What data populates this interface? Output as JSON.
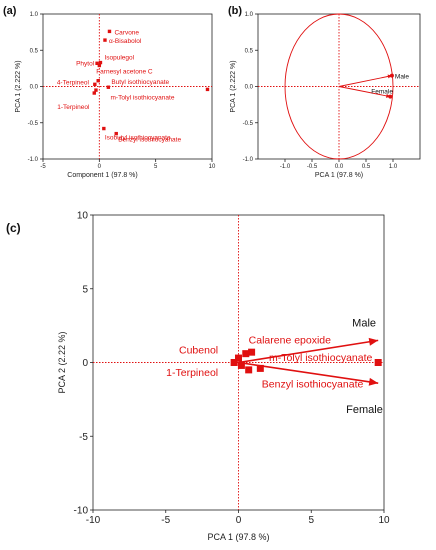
{
  "chart_data": [
    {
      "panel": "(a)",
      "type": "scatter",
      "xlabel": "Component 1  (97.8 %)",
      "ylabel": "PCA 1   (2.222 %)",
      "xlim": [
        -5,
        10
      ],
      "ylim": [
        -1.0,
        1.0
      ],
      "xticks": [
        "-5",
        "0",
        "5",
        "10"
      ],
      "yticks": [
        "-1.0",
        "-0.5",
        "0.0",
        "0.5",
        "1.0"
      ],
      "points": [
        {
          "label": "Carvone",
          "x": 0.9,
          "y": 0.76
        },
        {
          "label": "α-Bisabolol",
          "x": 0.5,
          "y": 0.64
        },
        {
          "label": "Isopulegol",
          "x": 0.1,
          "y": 0.33
        },
        {
          "label": "Phytol",
          "x": -0.2,
          "y": 0.32
        },
        {
          "label": "",
          "x": 0.0,
          "y": 0.29
        },
        {
          "label": "Farnesyl acetone C",
          "x": -0.1,
          "y": 0.08
        },
        {
          "label": "4-Terpineol",
          "x": -0.4,
          "y": 0.03
        },
        {
          "label": "Butyl isothiocyanate",
          "x": 0.8,
          "y": -0.01
        },
        {
          "label": "",
          "x": -0.3,
          "y": -0.05
        },
        {
          "label": "1-Terpineol",
          "x": -0.45,
          "y": -0.09
        },
        {
          "label": "m-Tolyl isothiocyanate",
          "x": 9.6,
          "y": -0.04
        },
        {
          "label": "Isobutyl isothiocyanate",
          "x": 0.4,
          "y": -0.58
        },
        {
          "label": "Benzyl isothiocyanate",
          "x": 1.5,
          "y": -0.65
        }
      ]
    },
    {
      "panel": "(b)",
      "type": "scatter",
      "xlabel": "PCA 1  (97.8 %)",
      "ylabel": "PCA 1   (2.222 %)",
      "xlim": [
        -1.5,
        1.5
      ],
      "ylim": [
        -1.0,
        1.0
      ],
      "xticks": [
        "-1.0",
        "-0.5",
        "0.0",
        "0.5",
        "1.0"
      ],
      "yticks": [
        "-1.0",
        "-0.5",
        "0.0",
        "0.5",
        "1.0"
      ],
      "vectors": [
        {
          "label": "Male",
          "x": 0.98,
          "y": 0.15
        },
        {
          "label": "Female",
          "x": 0.95,
          "y": -0.14
        }
      ]
    },
    {
      "panel": "(c)",
      "type": "scatter",
      "xlabel": "PCA 1  (97.8 %)",
      "ylabel": "PCA 2   (2.22 %)",
      "xlim": [
        -10,
        10
      ],
      "ylim": [
        -10,
        10
      ],
      "xticks": [
        "-10",
        "-5",
        "0",
        "5",
        "10"
      ],
      "yticks": [
        "-10",
        "-5",
        "0",
        "5",
        "10"
      ],
      "points": [
        {
          "label": "",
          "x": -0.3,
          "y": 0.0
        },
        {
          "label": "",
          "x": 0.0,
          "y": 0.3
        },
        {
          "label": "",
          "x": 0.2,
          "y": -0.2
        },
        {
          "label": "",
          "x": 0.5,
          "y": 0.6
        },
        {
          "label": "",
          "x": 0.9,
          "y": 0.7
        },
        {
          "label": "",
          "x": 0.7,
          "y": -0.5
        },
        {
          "label": "",
          "x": 1.5,
          "y": -0.4
        },
        {
          "label": "",
          "x": 9.6,
          "y": 0.0
        }
      ],
      "labels": [
        {
          "text": "Cubenol",
          "x": -1.4,
          "y": 0.6
        },
        {
          "text": "1-Terpineol",
          "x": -1.4,
          "y": -0.9
        },
        {
          "text": "Calarene epoxide",
          "x": 0.7,
          "y": 1.3
        },
        {
          "text": "m-Tolyl isothiocyanate",
          "x": 2.1,
          "y": 0.1
        },
        {
          "text": "Benzyl isothiocyanate",
          "x": 1.6,
          "y": -1.7
        }
      ],
      "vectors": [
        {
          "label": "Male",
          "x": 9.6,
          "y": 1.5
        },
        {
          "label": "Female",
          "x": 9.6,
          "y": -1.4
        }
      ]
    }
  ]
}
